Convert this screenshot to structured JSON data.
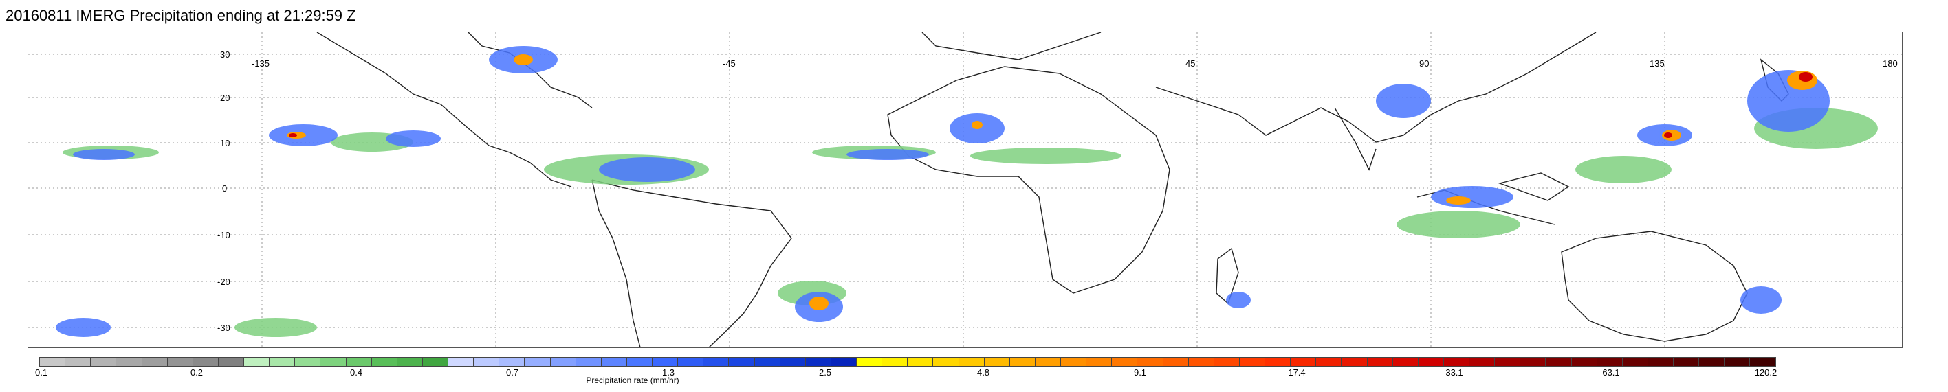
{
  "title": "20160811 IMERG Precipitation ending at 21:29:59 Z",
  "latitude_labels": [
    "30",
    "20",
    "10",
    "0",
    "-10",
    "-20",
    "-30"
  ],
  "longitude_labels": [
    "-135",
    "-45",
    "45",
    "90",
    "135",
    "180"
  ],
  "colorbar": {
    "label": "Precipitation rate (mm/hr)",
    "tick_labels": [
      "0.1",
      "0.2",
      "0.4",
      "0.7",
      "1.3",
      "2.5",
      "4.8",
      "9.1",
      "17.4",
      "33.1",
      "63.1",
      "120.2"
    ],
    "segment_colors": [
      "#c8c8c8",
      "#bdbdbd",
      "#b3b3b3",
      "#a8a8a8",
      "#9e9e9e",
      "#949494",
      "#8a8a8a",
      "#808080",
      "#bff0bf",
      "#a9e7a9",
      "#94dd94",
      "#7ed37e",
      "#6bc96b",
      "#59bf59",
      "#4db34d",
      "#40a640",
      "#cfd8ff",
      "#bccaff",
      "#a9bcff",
      "#96aeff",
      "#83a0ff",
      "#7092ff",
      "#5d84ff",
      "#4a76ff",
      "#3a68ff",
      "#2f5cf5",
      "#2551ec",
      "#1b46e2",
      "#1440d8",
      "#0f36cf",
      "#0a2dc5",
      "#0624bc",
      "#ffff00",
      "#fff100",
      "#ffe400",
      "#ffd600",
      "#ffc800",
      "#ffba00",
      "#ffac00",
      "#ff9e00",
      "#ff9000",
      "#ff8400",
      "#ff7800",
      "#ff6c00",
      "#ff6000",
      "#ff5400",
      "#ff4800",
      "#ff3c00",
      "#ff3000",
      "#f82800",
      "#f02000",
      "#e81800",
      "#e01000",
      "#d80800",
      "#d00000",
      "#c00000",
      "#b00000",
      "#a00000",
      "#900000",
      "#800000",
      "#780000",
      "#700000",
      "#680000",
      "#600000",
      "#580000",
      "#500000",
      "#480000",
      "#400000"
    ]
  }
}
